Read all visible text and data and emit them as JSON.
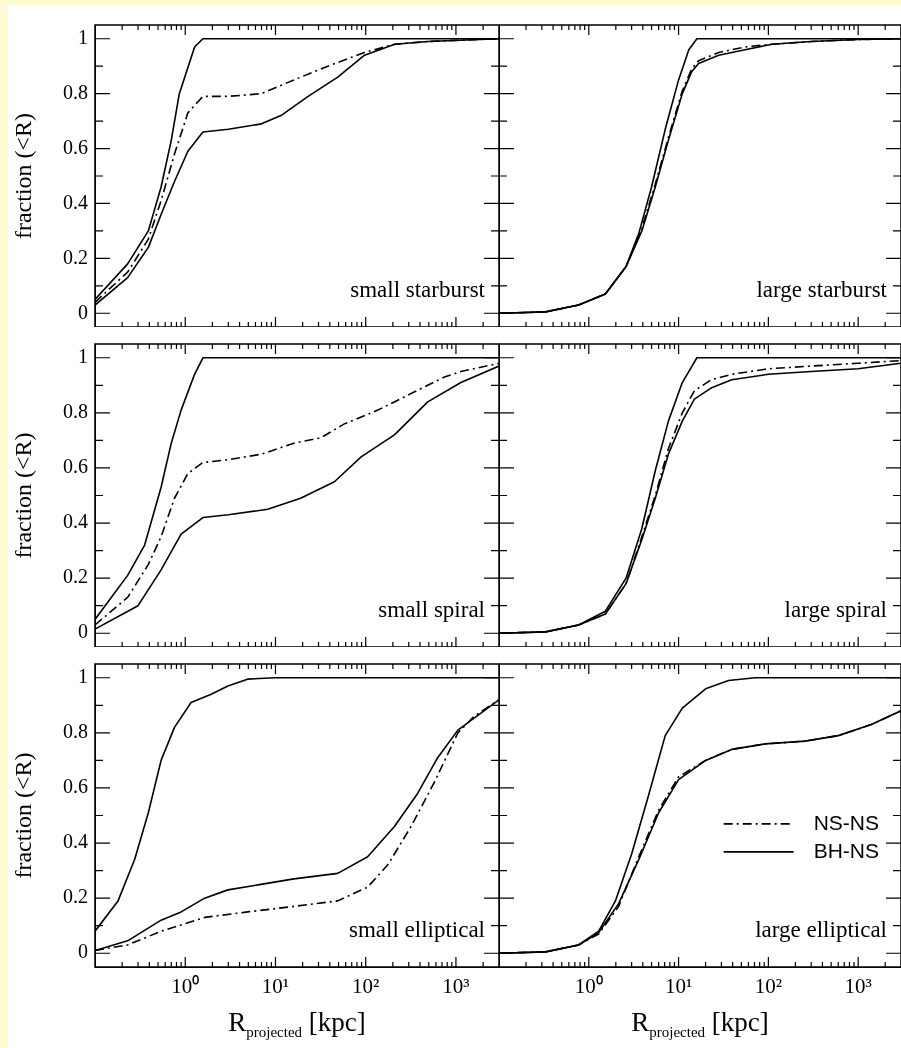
{
  "chart_data": [
    {
      "type": "line",
      "log": "x",
      "tick_labels": "y",
      "ylabel": "fraction (<R)",
      "annotations": [
        "small starburst"
      ],
      "xlim": [
        0.1,
        3000
      ],
      "ylim": [
        -0.05,
        1.05
      ],
      "xticks": [
        {
          "value": 0.2,
          "label": null
        },
        {
          "value": 0.3,
          "label": null
        },
        {
          "value": 0.4,
          "label": null
        },
        {
          "value": 0.5,
          "label": null
        },
        {
          "value": 0.6,
          "label": null
        },
        {
          "value": 0.7,
          "label": null
        },
        {
          "value": 0.8,
          "label": null
        },
        {
          "value": 0.9,
          "label": null
        },
        {
          "value": 1,
          "label": null
        },
        {
          "value": 2,
          "label": null
        },
        {
          "value": 3,
          "label": null
        },
        {
          "value": 4,
          "label": null
        },
        {
          "value": 5,
          "label": null
        },
        {
          "value": 6,
          "label": null
        },
        {
          "value": 7,
          "label": null
        },
        {
          "value": 8,
          "label": null
        },
        {
          "value": 9,
          "label": null
        },
        {
          "value": 10,
          "label": null
        },
        {
          "value": 20,
          "label": null
        },
        {
          "value": 30,
          "label": null
        },
        {
          "value": 40,
          "label": null
        },
        {
          "value": 50,
          "label": null
        },
        {
          "value": 60,
          "label": null
        },
        {
          "value": 70,
          "label": null
        },
        {
          "value": 80,
          "label": null
        },
        {
          "value": 90,
          "label": null
        },
        {
          "value": 100,
          "label": null
        },
        {
          "value": 200,
          "label": null
        },
        {
          "value": 300,
          "label": null
        },
        {
          "value": 400,
          "label": null
        },
        {
          "value": 500,
          "label": null
        },
        {
          "value": 600,
          "label": null
        },
        {
          "value": 700,
          "label": null
        },
        {
          "value": 800,
          "label": null
        },
        {
          "value": 900,
          "label": null
        },
        {
          "value": 1000,
          "label": null
        },
        {
          "value": 2000,
          "label": null
        }
      ],
      "yticks": [
        0,
        {
          "value": 0.1,
          "label": null
        },
        0.2,
        {
          "value": 0.3,
          "label": null
        },
        0.4,
        {
          "value": 0.5,
          "label": null
        },
        0.6,
        {
          "value": 0.7,
          "label": null
        },
        0.8,
        {
          "value": 0.9,
          "label": null
        },
        1
      ],
      "series": [
        {
          "color": "#000000",
          "line_style": "solid",
          "x": [
            0.1,
            0.23,
            0.39,
            0.54,
            0.7,
            0.86,
            1.27,
            1.57,
            3000
          ],
          "values": [
            0.05,
            0.18,
            0.3,
            0.46,
            0.63,
            0.8,
            0.97,
            1,
            1
          ]
        },
        {
          "color": "#000000",
          "line_style": "dashdot",
          "x": [
            0.1,
            0.23,
            0.39,
            0.54,
            0.76,
            1.07,
            1.57,
            3,
            7,
            16,
            38,
            97,
            210,
            490,
            3000
          ],
          "values": [
            0.04,
            0.15,
            0.27,
            0.41,
            0.58,
            0.73,
            0.79,
            0.79,
            0.8,
            0.85,
            0.9,
            0.95,
            0.98,
            0.99,
            1
          ]
        },
        {
          "color": "#000000",
          "line_style": "solid",
          "x": [
            0.1,
            0.23,
            0.39,
            0.54,
            0.76,
            1.07,
            1.57,
            3,
            7,
            11.5,
            23,
            49,
            97,
            210,
            490,
            3000
          ],
          "values": [
            0.03,
            0.13,
            0.24,
            0.36,
            0.48,
            0.59,
            0.66,
            0.67,
            0.69,
            0.72,
            0.79,
            0.86,
            0.94,
            0.98,
            0.99,
            1
          ]
        }
      ]
    },
    {
      "type": "line",
      "log": "x",
      "tick_labels": false,
      "annotations": [
        "large starburst"
      ],
      "xlim": [
        0.1,
        3000
      ],
      "ylim": [
        -0.05,
        1.05
      ],
      "xticks": [
        {
          "value": 0.2,
          "label": null
        },
        {
          "value": 0.3,
          "label": null
        },
        {
          "value": 0.4,
          "label": null
        },
        {
          "value": 0.5,
          "label": null
        },
        {
          "value": 0.6,
          "label": null
        },
        {
          "value": 0.7,
          "label": null
        },
        {
          "value": 0.8,
          "label": null
        },
        {
          "value": 0.9,
          "label": null
        },
        {
          "value": 1,
          "label": null
        },
        {
          "value": 2,
          "label": null
        },
        {
          "value": 3,
          "label": null
        },
        {
          "value": 4,
          "label": null
        },
        {
          "value": 5,
          "label": null
        },
        {
          "value": 6,
          "label": null
        },
        {
          "value": 7,
          "label": null
        },
        {
          "value": 8,
          "label": null
        },
        {
          "value": 9,
          "label": null
        },
        {
          "value": 10,
          "label": null
        },
        {
          "value": 20,
          "label": null
        },
        {
          "value": 30,
          "label": null
        },
        {
          "value": 40,
          "label": null
        },
        {
          "value": 50,
          "label": null
        },
        {
          "value": 60,
          "label": null
        },
        {
          "value": 70,
          "label": null
        },
        {
          "value": 80,
          "label": null
        },
        {
          "value": 90,
          "label": null
        },
        {
          "value": 100,
          "label": null
        },
        {
          "value": 200,
          "label": null
        },
        {
          "value": 300,
          "label": null
        },
        {
          "value": 400,
          "label": null
        },
        {
          "value": 500,
          "label": null
        },
        {
          "value": 600,
          "label": null
        },
        {
          "value": 700,
          "label": null
        },
        {
          "value": 800,
          "label": null
        },
        {
          "value": 900,
          "label": null
        },
        {
          "value": 1000,
          "label": null
        },
        {
          "value": 2000,
          "label": null
        }
      ],
      "yticks": [
        0,
        {
          "value": 0.1,
          "label": null
        },
        0.2,
        {
          "value": 0.3,
          "label": null
        },
        0.4,
        {
          "value": 0.5,
          "label": null
        },
        0.6,
        {
          "value": 0.7,
          "label": null
        },
        0.8,
        {
          "value": 0.9,
          "label": null
        },
        1
      ],
      "series": [
        {
          "color": "#000000",
          "line_style": "solid",
          "x": [
            0.1,
            0.33,
            0.77,
            1.53,
            2.6,
            3.6,
            5,
            7.1,
            10,
            13,
            16,
            3000
          ],
          "values": [
            0,
            0.005,
            0.03,
            0.07,
            0.17,
            0.29,
            0.46,
            0.67,
            0.85,
            0.96,
            1,
            1
          ]
        },
        {
          "color": "#000000",
          "line_style": "dashdot",
          "x": [
            0.1,
            0.33,
            0.77,
            1.53,
            2.6,
            3.9,
            5.5,
            7.7,
            11,
            14,
            16.7,
            28,
            55,
            110,
            300,
            1000,
            3000
          ],
          "values": [
            0,
            0.005,
            0.03,
            0.07,
            0.17,
            0.31,
            0.47,
            0.64,
            0.81,
            0.89,
            0.92,
            0.95,
            0.97,
            0.98,
            0.99,
            0.997,
            1
          ]
        },
        {
          "color": "#000000",
          "line_style": "solid",
          "x": [
            0.1,
            0.33,
            0.77,
            1.53,
            2.6,
            3.9,
            5.5,
            7.7,
            11,
            14,
            16.7,
            28,
            55,
            110,
            300,
            1000,
            3000
          ],
          "values": [
            0,
            0.005,
            0.03,
            0.07,
            0.17,
            0.3,
            0.46,
            0.63,
            0.8,
            0.88,
            0.91,
            0.94,
            0.96,
            0.98,
            0.99,
            0.997,
            1
          ]
        }
      ]
    },
    {
      "type": "line",
      "log": "x",
      "tick_labels": "y",
      "ylabel": "fraction (<R)",
      "annotations": [
        "small spiral"
      ],
      "xlim": [
        0.1,
        3000
      ],
      "ylim": [
        -0.05,
        1.05
      ],
      "xticks": [
        {
          "value": 0.2,
          "label": null
        },
        {
          "value": 0.3,
          "label": null
        },
        {
          "value": 0.4,
          "label": null
        },
        {
          "value": 0.5,
          "label": null
        },
        {
          "value": 0.6,
          "label": null
        },
        {
          "value": 0.7,
          "label": null
        },
        {
          "value": 0.8,
          "label": null
        },
        {
          "value": 0.9,
          "label": null
        },
        {
          "value": 1,
          "label": null
        },
        {
          "value": 2,
          "label": null
        },
        {
          "value": 3,
          "label": null
        },
        {
          "value": 4,
          "label": null
        },
        {
          "value": 5,
          "label": null
        },
        {
          "value": 6,
          "label": null
        },
        {
          "value": 7,
          "label": null
        },
        {
          "value": 8,
          "label": null
        },
        {
          "value": 9,
          "label": null
        },
        {
          "value": 10,
          "label": null
        },
        {
          "value": 20,
          "label": null
        },
        {
          "value": 30,
          "label": null
        },
        {
          "value": 40,
          "label": null
        },
        {
          "value": 50,
          "label": null
        },
        {
          "value": 60,
          "label": null
        },
        {
          "value": 70,
          "label": null
        },
        {
          "value": 80,
          "label": null
        },
        {
          "value": 90,
          "label": null
        },
        {
          "value": 100,
          "label": null
        },
        {
          "value": 200,
          "label": null
        },
        {
          "value": 300,
          "label": null
        },
        {
          "value": 400,
          "label": null
        },
        {
          "value": 500,
          "label": null
        },
        {
          "value": 600,
          "label": null
        },
        {
          "value": 700,
          "label": null
        },
        {
          "value": 800,
          "label": null
        },
        {
          "value": 900,
          "label": null
        },
        {
          "value": 1000,
          "label": null
        },
        {
          "value": 2000,
          "label": null
        }
      ],
      "yticks": [
        0,
        {
          "value": 0.1,
          "label": null
        },
        0.2,
        {
          "value": 0.3,
          "label": null
        },
        0.4,
        {
          "value": 0.5,
          "label": null
        },
        0.6,
        {
          "value": 0.7,
          "label": null
        },
        0.8,
        {
          "value": 0.9,
          "label": null
        },
        1
      ],
      "series": [
        {
          "color": "#000000",
          "line_style": "solid",
          "x": [
            0.1,
            0.23,
            0.355,
            0.54,
            0.7,
            0.9,
            1.27,
            1.57,
            3000
          ],
          "values": [
            0.05,
            0.21,
            0.32,
            0.53,
            0.69,
            0.81,
            0.94,
            1,
            1
          ]
        },
        {
          "color": "#000000",
          "line_style": "dashdot",
          "x": [
            0.1,
            0.23,
            0.39,
            0.54,
            0.76,
            1.07,
            1.57,
            3,
            7,
            16,
            32,
            58,
            136,
            318,
            745,
            1135,
            3000
          ],
          "values": [
            0.03,
            0.13,
            0.25,
            0.35,
            0.49,
            0.58,
            0.62,
            0.63,
            0.65,
            0.69,
            0.71,
            0.76,
            0.81,
            0.87,
            0.93,
            0.95,
            0.98
          ]
        },
        {
          "color": "#000000",
          "line_style": "solid",
          "x": [
            0.1,
            0.3,
            0.54,
            0.9,
            1.57,
            3,
            8.2,
            19,
            45,
            89,
            136,
            208,
            487,
            1135,
            3000
          ],
          "values": [
            0.015,
            0.1,
            0.23,
            0.36,
            0.42,
            0.43,
            0.45,
            0.49,
            0.55,
            0.64,
            0.68,
            0.72,
            0.84,
            0.91,
            0.97
          ]
        }
      ]
    },
    {
      "type": "line",
      "log": "x",
      "tick_labels": false,
      "annotations": [
        "large spiral"
      ],
      "xlim": [
        0.1,
        3000
      ],
      "ylim": [
        -0.05,
        1.05
      ],
      "xticks": [
        {
          "value": 0.2,
          "label": null
        },
        {
          "value": 0.3,
          "label": null
        },
        {
          "value": 0.4,
          "label": null
        },
        {
          "value": 0.5,
          "label": null
        },
        {
          "value": 0.6,
          "label": null
        },
        {
          "value": 0.7,
          "label": null
        },
        {
          "value": 0.8,
          "label": null
        },
        {
          "value": 0.9,
          "label": null
        },
        {
          "value": 1,
          "label": null
        },
        {
          "value": 2,
          "label": null
        },
        {
          "value": 3,
          "label": null
        },
        {
          "value": 4,
          "label": null
        },
        {
          "value": 5,
          "label": null
        },
        {
          "value": 6,
          "label": null
        },
        {
          "value": 7,
          "label": null
        },
        {
          "value": 8,
          "label": null
        },
        {
          "value": 9,
          "label": null
        },
        {
          "value": 10,
          "label": null
        },
        {
          "value": 20,
          "label": null
        },
        {
          "value": 30,
          "label": null
        },
        {
          "value": 40,
          "label": null
        },
        {
          "value": 50,
          "label": null
        },
        {
          "value": 60,
          "label": null
        },
        {
          "value": 70,
          "label": null
        },
        {
          "value": 80,
          "label": null
        },
        {
          "value": 90,
          "label": null
        },
        {
          "value": 100,
          "label": null
        },
        {
          "value": 200,
          "label": null
        },
        {
          "value": 300,
          "label": null
        },
        {
          "value": 400,
          "label": null
        },
        {
          "value": 500,
          "label": null
        },
        {
          "value": 600,
          "label": null
        },
        {
          "value": 700,
          "label": null
        },
        {
          "value": 800,
          "label": null
        },
        {
          "value": 900,
          "label": null
        },
        {
          "value": 1000,
          "label": null
        },
        {
          "value": 2000,
          "label": null
        }
      ],
      "yticks": [
        0,
        {
          "value": 0.1,
          "label": null
        },
        0.2,
        {
          "value": 0.3,
          "label": null
        },
        0.4,
        {
          "value": 0.5,
          "label": null
        },
        0.6,
        {
          "value": 0.7,
          "label": null
        },
        0.8,
        {
          "value": 0.9,
          "label": null
        },
        1
      ],
      "series": [
        {
          "color": "#000000",
          "line_style": "solid",
          "x": [
            0.1,
            0.33,
            0.77,
            1.53,
            2.6,
            3.9,
            5.5,
            7.7,
            11,
            16,
            3000
          ],
          "values": [
            0,
            0.005,
            0.03,
            0.08,
            0.2,
            0.38,
            0.59,
            0.77,
            0.91,
            1,
            1
          ]
        },
        {
          "color": "#000000",
          "line_style": "dashdot",
          "x": [
            0.1,
            0.33,
            0.77,
            1.53,
            2.6,
            3.9,
            5.5,
            7.7,
            11,
            15,
            23,
            39,
            100,
            300,
            1000,
            3000
          ],
          "values": [
            0,
            0.005,
            0.03,
            0.07,
            0.18,
            0.35,
            0.5,
            0.67,
            0.8,
            0.88,
            0.92,
            0.94,
            0.96,
            0.97,
            0.98,
            0.99
          ]
        },
        {
          "color": "#000000",
          "line_style": "solid",
          "x": [
            0.1,
            0.33,
            0.77,
            1.53,
            2.6,
            3.9,
            5.5,
            7.7,
            11,
            15,
            23,
            39,
            100,
            300,
            1000,
            3000
          ],
          "values": [
            0,
            0.005,
            0.03,
            0.07,
            0.18,
            0.34,
            0.49,
            0.65,
            0.77,
            0.85,
            0.89,
            0.92,
            0.94,
            0.95,
            0.96,
            0.98
          ]
        }
      ]
    },
    {
      "type": "line",
      "log": "x",
      "ylabel": "fraction (<R)",
      "xlabel": "R$_{projected}$ [kpc]",
      "annotations": [
        "small elliptical"
      ],
      "xlim": [
        0.1,
        3000
      ],
      "ylim": [
        -0.05,
        1.05
      ],
      "xticks": [
        {
          "value": 0.2,
          "label": null
        },
        {
          "value": 0.3,
          "label": null
        },
        {
          "value": 0.4,
          "label": null
        },
        {
          "value": 0.5,
          "label": null
        },
        {
          "value": 0.6,
          "label": null
        },
        {
          "value": 0.7,
          "label": null
        },
        {
          "value": 0.8,
          "label": null
        },
        {
          "value": 0.9,
          "label": null
        },
        {
          "value": 1,
          "label": "10⁰"
        },
        {
          "value": 2,
          "label": null
        },
        {
          "value": 3,
          "label": null
        },
        {
          "value": 4,
          "label": null
        },
        {
          "value": 5,
          "label": null
        },
        {
          "value": 6,
          "label": null
        },
        {
          "value": 7,
          "label": null
        },
        {
          "value": 8,
          "label": null
        },
        {
          "value": 9,
          "label": null
        },
        {
          "value": 10,
          "label": "10¹"
        },
        {
          "value": 20,
          "label": null
        },
        {
          "value": 30,
          "label": null
        },
        {
          "value": 40,
          "label": null
        },
        {
          "value": 50,
          "label": null
        },
        {
          "value": 60,
          "label": null
        },
        {
          "value": 70,
          "label": null
        },
        {
          "value": 80,
          "label": null
        },
        {
          "value": 90,
          "label": null
        },
        {
          "value": 100,
          "label": "10²"
        },
        {
          "value": 200,
          "label": null
        },
        {
          "value": 300,
          "label": null
        },
        {
          "value": 400,
          "label": null
        },
        {
          "value": 500,
          "label": null
        },
        {
          "value": 600,
          "label": null
        },
        {
          "value": 700,
          "label": null
        },
        {
          "value": 800,
          "label": null
        },
        {
          "value": 900,
          "label": null
        },
        {
          "value": 1000,
          "label": "10³"
        },
        {
          "value": 2000,
          "label": null
        }
      ],
      "yticks": [
        0,
        {
          "value": 0.1,
          "label": null
        },
        0.2,
        {
          "value": 0.3,
          "label": null
        },
        0.4,
        {
          "value": 0.5,
          "label": null
        },
        0.6,
        {
          "value": 0.7,
          "label": null
        },
        0.8,
        {
          "value": 0.9,
          "label": null
        },
        1
      ],
      "series": [
        {
          "color": "#000000",
          "line_style": "solid",
          "x": [
            0.1,
            0.18,
            0.275,
            0.39,
            0.54,
            0.76,
            1.16,
            1.94,
            2.97,
            4.9,
            9.8,
            3000
          ],
          "values": [
            0.08,
            0.19,
            0.34,
            0.51,
            0.7,
            0.82,
            0.91,
            0.94,
            0.97,
            0.995,
            1,
            1
          ]
        },
        {
          "color": "#000000",
          "line_style": "dashdot",
          "x": [
            0.1,
            0.23,
            0.54,
            1.64,
            4.9,
            16,
            49,
            105,
            175,
            318,
            575,
            1050,
            1590,
            3000
          ],
          "values": [
            0.01,
            0.03,
            0.08,
            0.13,
            0.15,
            0.17,
            0.19,
            0.24,
            0.32,
            0.46,
            0.62,
            0.8,
            0.86,
            0.92
          ]
        },
        {
          "color": "#000000",
          "line_style": "solid",
          "x": [
            0.1,
            0.23,
            0.54,
            0.9,
            1.64,
            2.97,
            6.9,
            16,
            49,
            105,
            208,
            376,
            627,
            1050,
            3000
          ],
          "values": [
            0.01,
            0.045,
            0.12,
            0.15,
            0.2,
            0.23,
            0.25,
            0.27,
            0.29,
            0.35,
            0.46,
            0.58,
            0.71,
            0.81,
            0.92
          ]
        }
      ]
    },
    {
      "type": "line",
      "log": "x",
      "tick_labels": "x",
      "xlabel": "R$_{projected}$ [kpc]",
      "annotations": [
        "large elliptical"
      ],
      "legend": "right",
      "xlim": [
        0.1,
        3000
      ],
      "ylim": [
        -0.05,
        1.05
      ],
      "xticks": [
        {
          "value": 0.2,
          "label": null
        },
        {
          "value": 0.3,
          "label": null
        },
        {
          "value": 0.4,
          "label": null
        },
        {
          "value": 0.5,
          "label": null
        },
        {
          "value": 0.6,
          "label": null
        },
        {
          "value": 0.7,
          "label": null
        },
        {
          "value": 0.8,
          "label": null
        },
        {
          "value": 0.9,
          "label": null
        },
        {
          "value": 1,
          "label": "10⁰"
        },
        {
          "value": 2,
          "label": null
        },
        {
          "value": 3,
          "label": null
        },
        {
          "value": 4,
          "label": null
        },
        {
          "value": 5,
          "label": null
        },
        {
          "value": 6,
          "label": null
        },
        {
          "value": 7,
          "label": null
        },
        {
          "value": 8,
          "label": null
        },
        {
          "value": 9,
          "label": null
        },
        {
          "value": 10,
          "label": "10¹"
        },
        {
          "value": 20,
          "label": null
        },
        {
          "value": 30,
          "label": null
        },
        {
          "value": 40,
          "label": null
        },
        {
          "value": 50,
          "label": null
        },
        {
          "value": 60,
          "label": null
        },
        {
          "value": 70,
          "label": null
        },
        {
          "value": 80,
          "label": null
        },
        {
          "value": 90,
          "label": null
        },
        {
          "value": 100,
          "label": "10²"
        },
        {
          "value": 200,
          "label": null
        },
        {
          "value": 300,
          "label": null
        },
        {
          "value": 400,
          "label": null
        },
        {
          "value": 500,
          "label": null
        },
        {
          "value": 600,
          "label": null
        },
        {
          "value": 700,
          "label": null
        },
        {
          "value": 800,
          "label": null
        },
        {
          "value": 900,
          "label": null
        },
        {
          "value": 1000,
          "label": "10³"
        },
        {
          "value": 2000,
          "label": null
        }
      ],
      "yticks": [
        0,
        {
          "value": 0.1,
          "label": null
        },
        0.2,
        {
          "value": 0.3,
          "label": null
        },
        0.4,
        {
          "value": 0.5,
          "label": null
        },
        0.6,
        {
          "value": 0.7,
          "label": null
        },
        0.8,
        {
          "value": 0.9,
          "label": null
        },
        1
      ],
      "series": [
        {
          "color": "#000000",
          "line_style": "solid",
          "x": [
            0.1,
            0.33,
            0.77,
            1.29,
            1.98,
            3,
            4.6,
            7.1,
            11,
            20,
            36,
            71,
            3000
          ],
          "values": [
            0,
            0.005,
            0.03,
            0.08,
            0.19,
            0.36,
            0.57,
            0.79,
            0.89,
            0.96,
            0.99,
            1,
            1
          ]
        },
        {
          "name": "NS-NS",
          "color": "#000000",
          "line_style": "dashdot",
          "x": [
            0.1,
            0.33,
            0.77,
            1.29,
            2.15,
            3.6,
            6,
            10,
            20,
            39,
            92,
            257,
            600,
            1400,
            3000
          ],
          "values": [
            0,
            0.005,
            0.03,
            0.07,
            0.17,
            0.35,
            0.52,
            0.64,
            0.7,
            0.74,
            0.76,
            0.77,
            0.79,
            0.83,
            0.88
          ]
        },
        {
          "name": "BH-NS",
          "color": "#000000",
          "line_style": "solid",
          "x": [
            0.1,
            0.33,
            0.77,
            1.29,
            2.15,
            3.6,
            6,
            10,
            20,
            39,
            92,
            257,
            600,
            1400,
            3000
          ],
          "values": [
            0,
            0.005,
            0.03,
            0.075,
            0.18,
            0.34,
            0.51,
            0.63,
            0.7,
            0.74,
            0.76,
            0.77,
            0.79,
            0.83,
            0.88
          ]
        }
      ]
    }
  ]
}
